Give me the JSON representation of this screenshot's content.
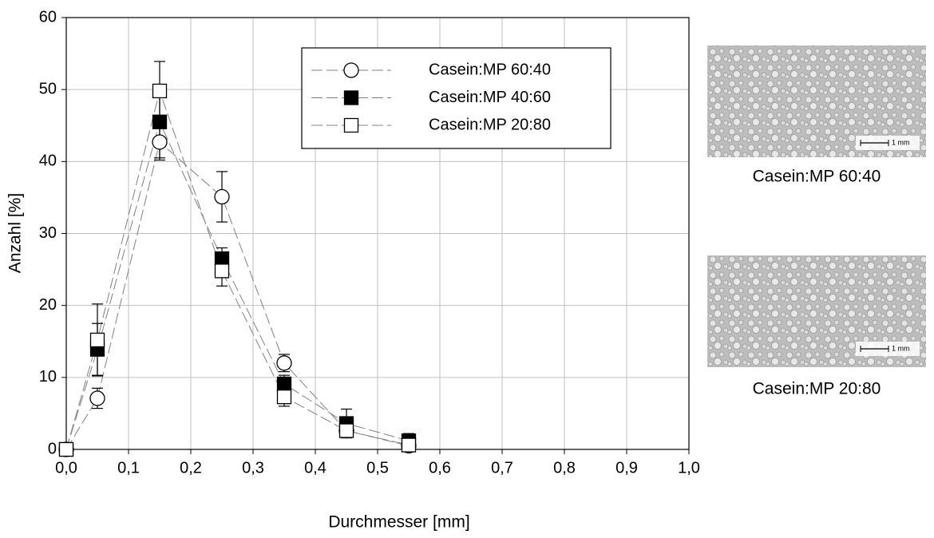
{
  "chart_data": {
    "type": "line",
    "xlabel": "Durchmesser [mm]",
    "ylabel": "Anzahl [%]",
    "xlim": [
      0,
      1
    ],
    "ylim": [
      0,
      60
    ],
    "xticks": [
      {
        "value": 0,
        "label": "0,0"
      },
      {
        "value": 0.1,
        "label": "0,1"
      },
      {
        "value": 0.2,
        "label": "0,2"
      },
      {
        "value": 0.3,
        "label": "0,3"
      },
      {
        "value": 0.4,
        "label": "0,4"
      },
      {
        "value": 0.5,
        "label": "0,5"
      },
      {
        "value": 0.6,
        "label": "0,6"
      },
      {
        "value": 0.7,
        "label": "0,7"
      },
      {
        "value": 0.8,
        "label": "0,8"
      },
      {
        "value": 0.9,
        "label": "0,9"
      },
      {
        "value": 1,
        "label": "1,0"
      }
    ],
    "yticks": [
      0,
      10,
      20,
      30,
      40,
      50,
      60
    ],
    "grid": true,
    "legend": "upper center",
    "x": [
      0,
      0.05,
      0.15,
      0.25,
      0.35,
      0.45,
      0.55
    ],
    "series": [
      {
        "name": "Casein:MP 60:40",
        "marker": "circle",
        "color": "#ffffff",
        "values": [
          0,
          7.1,
          42.7,
          35.1,
          12.0,
          2.6,
          0.5
        ],
        "errors": [
          0,
          1.4,
          2.5,
          3.5,
          1.2,
          0.4,
          0.3
        ]
      },
      {
        "name": "Casein:MP 40:60",
        "marker": "square",
        "color": "#000000",
        "values": [
          0,
          13.9,
          45.5,
          26.5,
          9.1,
          3.6,
          1.2
        ],
        "errors": [
          0,
          3.6,
          5.0,
          1.5,
          1.2,
          2.0,
          1.0
        ]
      },
      {
        "name": "Casein:MP 20:80",
        "marker": "square",
        "color": "#ffffff",
        "values": [
          0,
          15.2,
          49.8,
          24.8,
          7.3,
          2.6,
          0.6
        ],
        "errors": [
          0,
          5.0,
          4.1,
          2.1,
          1.3,
          0.5,
          0.5
        ]
      }
    ]
  },
  "images": [
    {
      "caption": "Casein:MP 60:40",
      "scale": "1 mm"
    },
    {
      "caption": "Casein:MP 20:80",
      "scale": "1 mm"
    }
  ]
}
